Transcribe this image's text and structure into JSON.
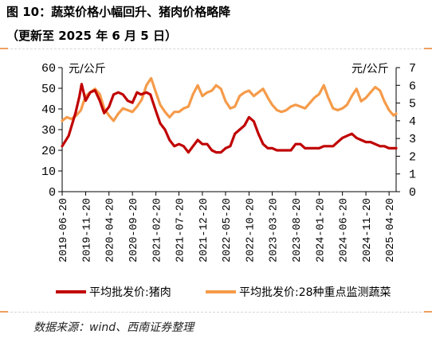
{
  "title": {
    "line1": "图 10：蔬菜价格小幅回升、猪肉价格略降",
    "line2": "（更新至 2025 年 6 月 5 日）"
  },
  "source": "数据来源：wind、西南证券整理",
  "colors": {
    "pork": "#c00000",
    "vegetable": "#f59b4a",
    "axis": "#000000",
    "rule_accent": "#f0a060"
  },
  "chart_data": {
    "type": "line",
    "x": [
      "2019-06-20",
      "2019-11-20",
      "2020-04-20",
      "2020-09-20",
      "2021-02-20",
      "2021-07-20",
      "2021-12-20",
      "2022-05-20",
      "2022-10-20",
      "2023-03-20",
      "2023-08-20",
      "2024-01-20",
      "2024-06-20",
      "2024-11-20",
      "2025-04-20"
    ],
    "x_ticks": [
      "2019-06-20",
      "2019-11-20",
      "2020-04-20",
      "2020-09-20",
      "2021-02-20",
      "2021-07-20",
      "2021-12-20",
      "2022-05-20",
      "2022-10-20",
      "2023-03-20",
      "2023-08-20",
      "2024-01-20",
      "2024-06-20",
      "2024-11-20",
      "2025-04-20"
    ],
    "x_end": "2025-06-05",
    "left_axis": {
      "label": "元/公斤",
      "ylim": [
        0,
        60
      ],
      "ticks": [
        0,
        10,
        20,
        30,
        40,
        50,
        60
      ]
    },
    "right_axis": {
      "label": "元/公斤",
      "ylim": [
        0,
        7
      ],
      "ticks": [
        0,
        1,
        2,
        3,
        4,
        5,
        6,
        7
      ]
    },
    "series": [
      {
        "name": "平均批发价:猪肉",
        "axis": "left",
        "points": [
          [
            "2019-06-20",
            22
          ],
          [
            "2019-08-01",
            27
          ],
          [
            "2019-09-15",
            38
          ],
          [
            "2019-10-10",
            46
          ],
          [
            "2019-10-25",
            52
          ],
          [
            "2019-11-20",
            44
          ],
          [
            "2019-12-20",
            48
          ],
          [
            "2020-01-20",
            49
          ],
          [
            "2020-02-20",
            44
          ],
          [
            "2020-03-20",
            38
          ],
          [
            "2020-04-20",
            41
          ],
          [
            "2020-05-20",
            47
          ],
          [
            "2020-06-20",
            48
          ],
          [
            "2020-07-20",
            47
          ],
          [
            "2020-08-20",
            44
          ],
          [
            "2020-09-20",
            43
          ],
          [
            "2020-10-20",
            48
          ],
          [
            "2020-11-15",
            47
          ],
          [
            "2020-12-20",
            48
          ],
          [
            "2021-01-15",
            47
          ],
          [
            "2021-02-20",
            39
          ],
          [
            "2021-03-20",
            33
          ],
          [
            "2021-04-20",
            30
          ],
          [
            "2021-05-20",
            25
          ],
          [
            "2021-06-20",
            22
          ],
          [
            "2021-07-20",
            23
          ],
          [
            "2021-08-20",
            22
          ],
          [
            "2021-09-20",
            19
          ],
          [
            "2021-10-20",
            22
          ],
          [
            "2021-11-20",
            25
          ],
          [
            "2021-12-20",
            23
          ],
          [
            "2022-01-20",
            23
          ],
          [
            "2022-02-20",
            20
          ],
          [
            "2022-03-20",
            19
          ],
          [
            "2022-04-20",
            19
          ],
          [
            "2022-05-20",
            21
          ],
          [
            "2022-06-20",
            22
          ],
          [
            "2022-07-20",
            28
          ],
          [
            "2022-08-20",
            30
          ],
          [
            "2022-09-20",
            32
          ],
          [
            "2022-10-20",
            36
          ],
          [
            "2022-11-20",
            34
          ],
          [
            "2022-12-20",
            28
          ],
          [
            "2023-01-20",
            23
          ],
          [
            "2023-02-20",
            21
          ],
          [
            "2023-03-20",
            21
          ],
          [
            "2023-04-20",
            20
          ],
          [
            "2023-05-20",
            20
          ],
          [
            "2023-06-20",
            20
          ],
          [
            "2023-07-20",
            20
          ],
          [
            "2023-08-20",
            23
          ],
          [
            "2023-09-20",
            23
          ],
          [
            "2023-10-20",
            21
          ],
          [
            "2023-11-20",
            21
          ],
          [
            "2023-12-20",
            21
          ],
          [
            "2024-01-20",
            21
          ],
          [
            "2024-02-20",
            22
          ],
          [
            "2024-03-20",
            22
          ],
          [
            "2024-04-20",
            22
          ],
          [
            "2024-05-20",
            24
          ],
          [
            "2024-06-20",
            26
          ],
          [
            "2024-07-20",
            27
          ],
          [
            "2024-08-20",
            28
          ],
          [
            "2024-09-20",
            26
          ],
          [
            "2024-10-20",
            25
          ],
          [
            "2024-11-20",
            24
          ],
          [
            "2024-12-20",
            24
          ],
          [
            "2025-01-20",
            23
          ],
          [
            "2025-02-20",
            22
          ],
          [
            "2025-03-20",
            22
          ],
          [
            "2025-04-20",
            21
          ],
          [
            "2025-05-20",
            21
          ],
          [
            "2025-06-05",
            21
          ]
        ]
      },
      {
        "name": "平均批发价:28种重点监测蔬菜",
        "axis": "right",
        "points": [
          [
            "2019-06-20",
            4.0
          ],
          [
            "2019-07-20",
            4.2
          ],
          [
            "2019-08-20",
            4.1
          ],
          [
            "2019-09-20",
            4.3
          ],
          [
            "2019-10-20",
            4.6
          ],
          [
            "2019-11-20",
            5.4
          ],
          [
            "2019-12-20",
            5.6
          ],
          [
            "2020-01-20",
            5.8
          ],
          [
            "2020-02-20",
            5.5
          ],
          [
            "2020-03-20",
            4.7
          ],
          [
            "2020-04-20",
            4.3
          ],
          [
            "2020-05-20",
            4.0
          ],
          [
            "2020-06-20",
            4.4
          ],
          [
            "2020-07-20",
            4.7
          ],
          [
            "2020-08-20",
            4.6
          ],
          [
            "2020-09-20",
            4.5
          ],
          [
            "2020-10-20",
            4.8
          ],
          [
            "2020-11-20",
            5.2
          ],
          [
            "2020-12-20",
            6.0
          ],
          [
            "2021-01-20",
            6.4
          ],
          [
            "2021-02-20",
            5.6
          ],
          [
            "2021-03-20",
            4.9
          ],
          [
            "2021-04-20",
            4.5
          ],
          [
            "2021-05-20",
            4.2
          ],
          [
            "2021-06-20",
            4.5
          ],
          [
            "2021-07-20",
            4.5
          ],
          [
            "2021-08-20",
            4.7
          ],
          [
            "2021-09-20",
            4.8
          ],
          [
            "2021-10-20",
            5.5
          ],
          [
            "2021-11-20",
            6.0
          ],
          [
            "2021-12-20",
            5.4
          ],
          [
            "2022-01-20",
            5.6
          ],
          [
            "2022-02-20",
            5.7
          ],
          [
            "2022-03-20",
            6.0
          ],
          [
            "2022-04-20",
            5.8
          ],
          [
            "2022-05-20",
            5.1
          ],
          [
            "2022-06-20",
            4.7
          ],
          [
            "2022-07-20",
            4.8
          ],
          [
            "2022-08-20",
            5.4
          ],
          [
            "2022-09-20",
            5.6
          ],
          [
            "2022-10-20",
            5.7
          ],
          [
            "2022-11-20",
            5.4
          ],
          [
            "2022-12-20",
            5.6
          ],
          [
            "2023-01-20",
            5.8
          ],
          [
            "2023-02-20",
            5.3
          ],
          [
            "2023-03-20",
            4.9
          ],
          [
            "2023-04-20",
            4.6
          ],
          [
            "2023-05-20",
            4.5
          ],
          [
            "2023-06-20",
            4.6
          ],
          [
            "2023-07-20",
            4.8
          ],
          [
            "2023-08-20",
            4.9
          ],
          [
            "2023-09-20",
            4.8
          ],
          [
            "2023-10-20",
            4.7
          ],
          [
            "2023-11-20",
            5.0
          ],
          [
            "2023-12-20",
            5.3
          ],
          [
            "2024-01-20",
            5.5
          ],
          [
            "2024-02-20",
            6.0
          ],
          [
            "2024-03-20",
            5.3
          ],
          [
            "2024-04-20",
            4.7
          ],
          [
            "2024-05-20",
            4.6
          ],
          [
            "2024-06-20",
            4.7
          ],
          [
            "2024-07-20",
            4.9
          ],
          [
            "2024-08-20",
            5.4
          ],
          [
            "2024-09-20",
            5.8
          ],
          [
            "2024-10-20",
            5.1
          ],
          [
            "2024-11-20",
            5.3
          ],
          [
            "2024-12-20",
            5.6
          ],
          [
            "2025-01-20",
            5.9
          ],
          [
            "2025-02-20",
            5.7
          ],
          [
            "2025-03-20",
            5.1
          ],
          [
            "2025-04-20",
            4.6
          ],
          [
            "2025-05-20",
            4.3
          ],
          [
            "2025-06-05",
            4.4
          ]
        ]
      }
    ],
    "legend_position": "bottom",
    "grid": false
  }
}
